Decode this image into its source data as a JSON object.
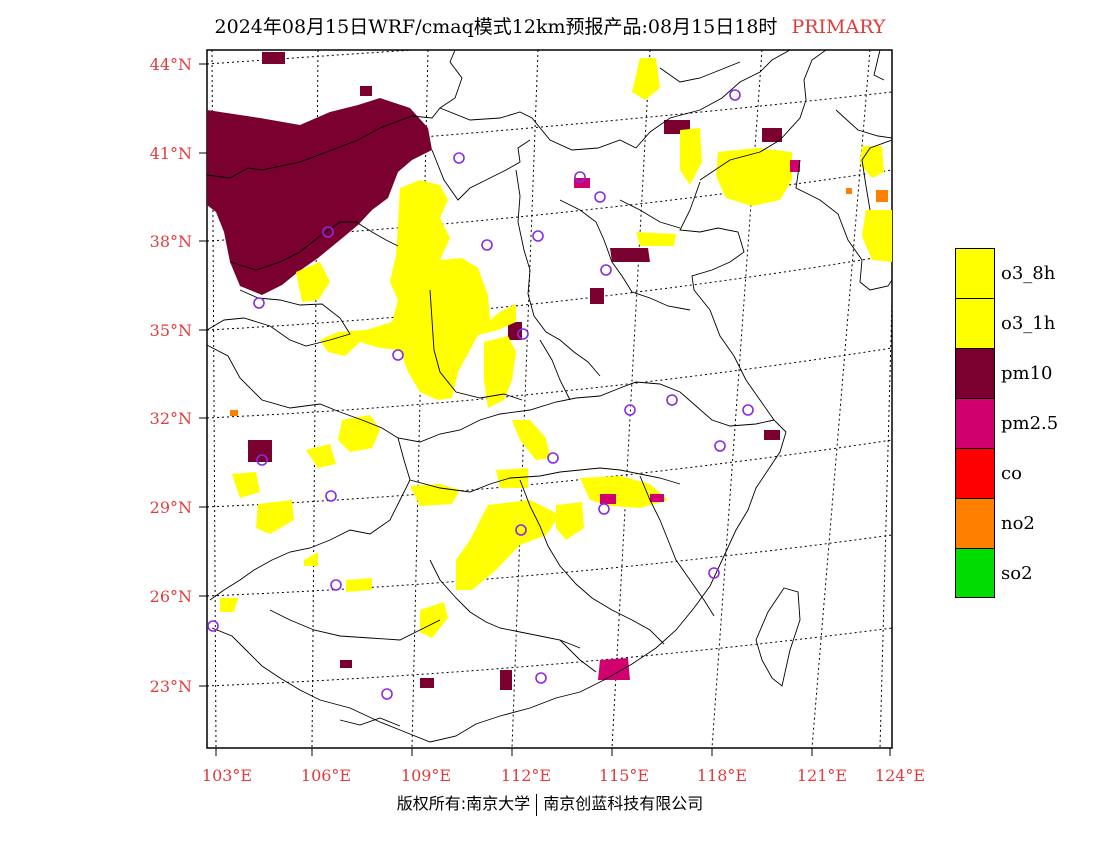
{
  "title": {
    "main": "2024年08月15日WRF/cmaq模式12km预报产品:08月15日18时",
    "tag": "PRIMARY"
  },
  "axes": {
    "latitudes": [
      "44°N",
      "41°N",
      "38°N",
      "35°N",
      "32°N",
      "29°N",
      "26°N",
      "23°N"
    ],
    "longitudes": [
      "103°E",
      "106°E",
      "109°E",
      "112°E",
      "115°E",
      "118°E",
      "121°E",
      "124°E"
    ]
  },
  "legend": [
    {
      "label": "o3_8h",
      "color": "#ffff00"
    },
    {
      "label": "o3_1h",
      "color": "#ffff00"
    },
    {
      "label": "pm10",
      "color": "#7a0030"
    },
    {
      "label": "pm2.5",
      "color": "#d0006f"
    },
    {
      "label": "co",
      "color": "#ff0000"
    },
    {
      "label": "no2",
      "color": "#ff7f00"
    },
    {
      "label": "so2",
      "color": "#00dd00"
    }
  ],
  "footer": {
    "left": "版权所有:南京大学",
    "right": "南京创蓝科技有限公司"
  },
  "colors": {
    "o3": "#ffff00",
    "pm10": "#7a0030",
    "pm25": "#d0006f",
    "no2": "#ff7f00",
    "station": "#8a2be2",
    "label": "#e23b3b"
  }
}
